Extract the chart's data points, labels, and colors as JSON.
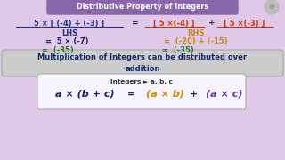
{
  "bg_color": "#dfc8e8",
  "title": "Distributive Property of Integers",
  "title_bg": "#8866aa",
  "title_color": "#ffffff",
  "lhs_label": "LHS",
  "rhs_label": "RHS",
  "lhs_step1": "=  5 × (-7)",
  "lhs_step2": "=  (-35)",
  "rhs_step1": "=  (-20) + (-15)",
  "rhs_step2": "=  (-35)",
  "box1_text": "Multiplication of Integers can be distributed over\naddition",
  "box1_bg": "#cccccc",
  "box2_label": "Integers ► a, b, c",
  "box2_bg": "#f8f4ff",
  "orange": "#cc8800",
  "blue": "#223388",
  "dark_blue": "#112266",
  "green": "#227722",
  "red_orange": "#cc3300",
  "purple": "#6633aa"
}
